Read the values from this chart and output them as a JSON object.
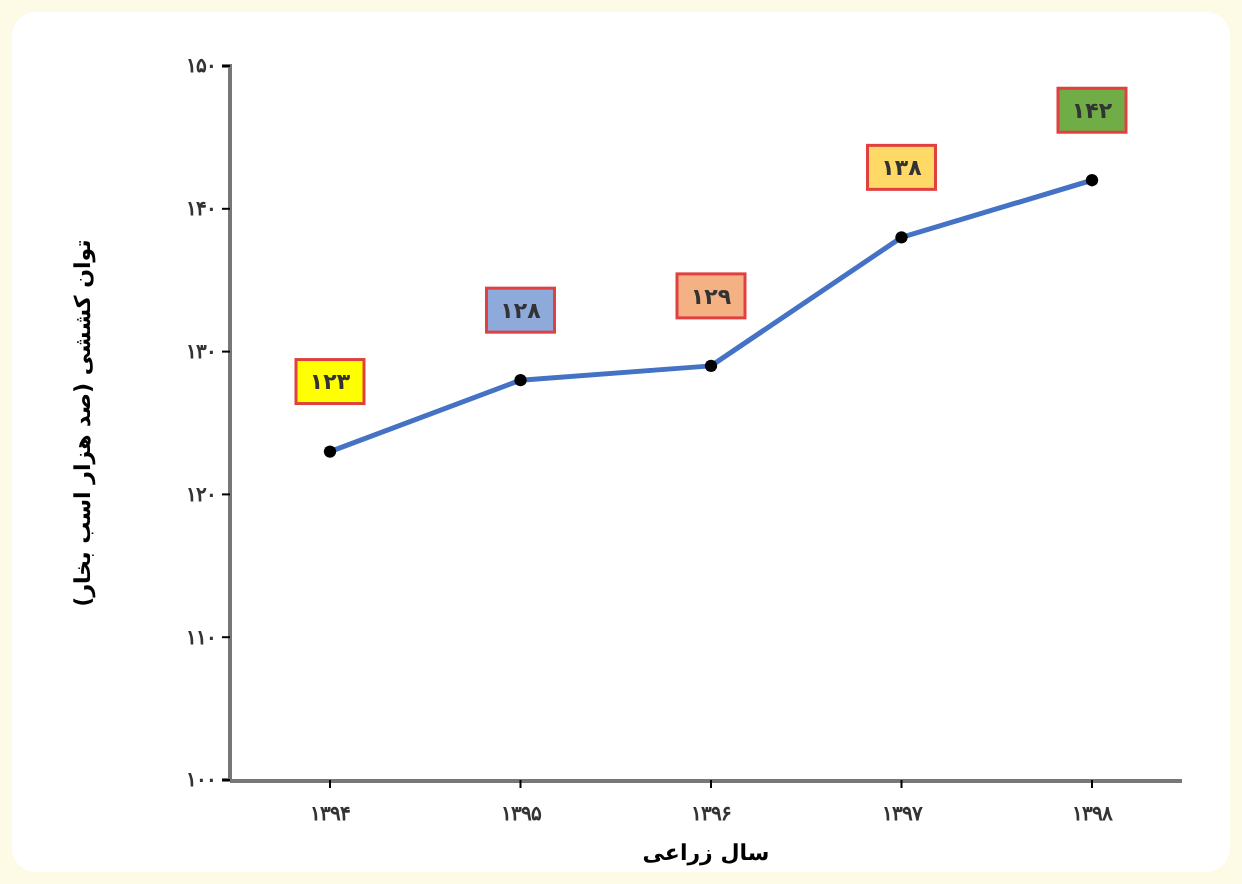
{
  "chart_data": {
    "type": "line",
    "xlabel": "سال زراعی",
    "ylabel": "توان کششی (صد هزار اسب بخار)",
    "categories": [
      "۱۳۹۴",
      "۱۳۹۵",
      "۱۳۹۶",
      "۱۳۹۷",
      "۱۳۹۸"
    ],
    "series": [
      {
        "color": "#4472c4",
        "values": [
          123,
          128,
          129,
          138,
          142
        ],
        "value_labels": [
          "۱۲۳",
          "۱۲۸",
          "۱۲۹",
          "۱۳۸",
          "۱۴۲"
        ]
      }
    ],
    "ylim": [
      100,
      150
    ],
    "yticks": [
      {
        "value": 100,
        "label": "۱۰۰"
      },
      {
        "value": 110,
        "label": "۱۱۰"
      },
      {
        "value": 120,
        "label": "۱۲۰"
      },
      {
        "value": 130,
        "label": "۱۳۰"
      },
      {
        "value": 140,
        "label": "۱۴۰"
      },
      {
        "value": 150,
        "label": "۱۵۰"
      }
    ],
    "marker": "circle",
    "line_style": "solid",
    "grid": false
  }
}
